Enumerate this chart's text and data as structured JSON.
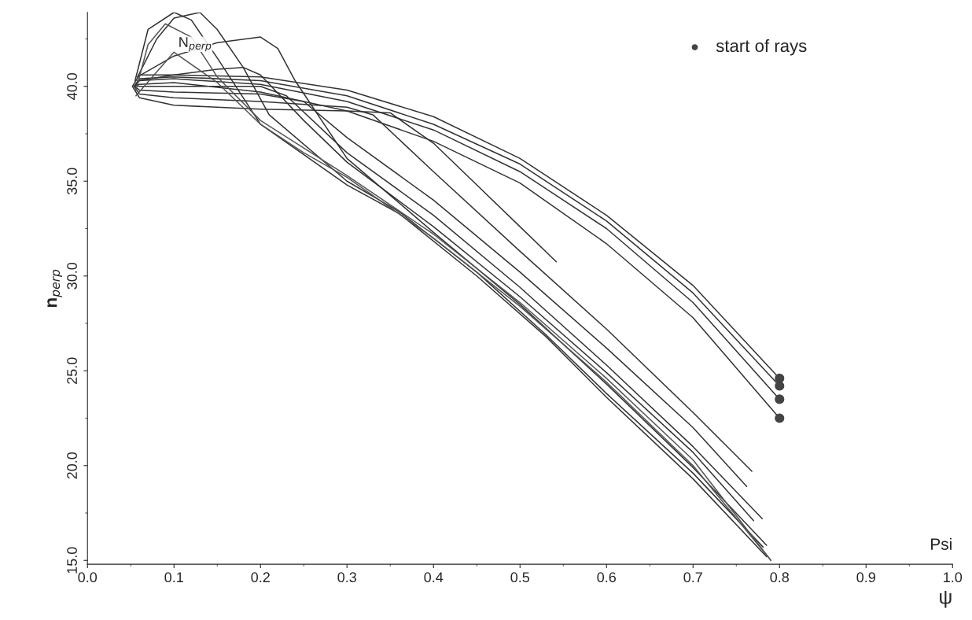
{
  "chart_data": {
    "type": "line",
    "xlabel": "ψ",
    "ylabel": "n$_{perp}$",
    "xlim": [
      0.0,
      1.0
    ],
    "ylim": [
      14.8,
      43.9
    ],
    "xticks": [
      {
        "value": 0.0,
        "label": "0.0"
      },
      {
        "value": 0.1,
        "label": "0.1"
      },
      {
        "value": 0.2,
        "label": "0.2"
      },
      {
        "value": 0.3,
        "label": "0.3"
      },
      {
        "value": 0.4,
        "label": "0.4"
      },
      {
        "value": 0.5,
        "label": "0.5"
      },
      {
        "value": 0.6,
        "label": "0.6"
      },
      {
        "value": 0.7,
        "label": "0.7"
      },
      {
        "value": 0.8,
        "label": "0.8"
      },
      {
        "value": 0.9,
        "label": "0.9"
      },
      {
        "value": 1.0,
        "label": "1.0"
      }
    ],
    "yticks": [
      {
        "value": 15,
        "label": "15.0"
      },
      {
        "value": 20,
        "label": "20.0"
      },
      {
        "value": 25,
        "label": "25.0"
      },
      {
        "value": 30,
        "label": "30.0"
      },
      {
        "value": 35,
        "label": "35.0"
      },
      {
        "value": 40,
        "label": "40.0"
      }
    ],
    "grid": false,
    "legend": "top right",
    "line_style": "solid",
    "annotations": [
      "N$_{perp}$",
      "Psi"
    ],
    "series": [
      {
        "color": "#333333",
        "x": [
          0.8,
          0.7,
          0.6,
          0.5,
          0.4,
          0.3,
          0.2,
          0.1,
          0.06,
          0.052,
          0.06,
          0.1,
          0.2,
          0.3,
          0.35,
          0.4,
          0.45,
          0.5,
          0.542
        ],
        "values": [
          24.6,
          29.5,
          33.2,
          36.2,
          38.4,
          39.8,
          40.5,
          40.6,
          40.6,
          40.0,
          39.4,
          39.0,
          38.8,
          38.7,
          38.6,
          37.0,
          34.8,
          32.6,
          30.75
        ]
      },
      {
        "color": "#333333",
        "x": [
          0.8,
          0.7,
          0.6,
          0.5,
          0.4,
          0.3,
          0.2,
          0.1,
          0.06,
          0.054,
          0.06,
          0.1,
          0.2,
          0.3,
          0.33,
          0.4,
          0.5,
          0.6,
          0.7,
          0.768
        ],
        "values": [
          24.2,
          29.1,
          32.9,
          35.9,
          38.0,
          39.5,
          40.3,
          40.5,
          40.4,
          40.0,
          39.6,
          39.4,
          39.2,
          38.9,
          38.5,
          35.5,
          31.3,
          27.2,
          22.8,
          19.7
        ]
      },
      {
        "color": "#333333",
        "x": [
          0.8,
          0.7,
          0.6,
          0.5,
          0.4,
          0.3,
          0.2,
          0.1,
          0.06,
          0.055,
          0.06,
          0.1,
          0.2,
          0.25,
          0.3,
          0.4,
          0.5,
          0.6,
          0.7,
          0.762
        ],
        "values": [
          23.5,
          28.6,
          32.5,
          35.5,
          37.7,
          39.2,
          40.1,
          40.4,
          40.3,
          40.0,
          39.8,
          39.7,
          39.6,
          39.2,
          37.3,
          34.0,
          30.2,
          26.2,
          22.0,
          18.9
        ]
      },
      {
        "color": "#333333",
        "x": [
          0.8,
          0.7,
          0.6,
          0.5,
          0.4,
          0.3,
          0.2,
          0.1,
          0.06,
          0.056,
          0.06,
          0.1,
          0.2,
          0.23,
          0.3,
          0.4,
          0.5,
          0.6,
          0.7,
          0.78
        ],
        "values": [
          22.5,
          27.8,
          31.7,
          34.9,
          37.1,
          38.7,
          39.7,
          40.2,
          40.1,
          40.05,
          40.0,
          40.0,
          40.0,
          39.5,
          36.5,
          33.2,
          29.4,
          25.3,
          21.0,
          17.2
        ]
      },
      {
        "color": "#333333",
        "x": [
          0.058,
          0.1,
          0.15,
          0.18,
          0.2,
          0.25,
          0.3,
          0.4,
          0.5,
          0.6,
          0.7,
          0.77
        ],
        "values": [
          40.3,
          40.6,
          40.9,
          41.0,
          40.6,
          38.2,
          36.0,
          32.6,
          28.9,
          24.9,
          20.7,
          17.1
        ]
      },
      {
        "color": "#333333",
        "x": [
          0.058,
          0.1,
          0.15,
          0.2,
          0.22,
          0.24,
          0.3,
          0.4,
          0.5,
          0.6,
          0.7,
          0.785
        ],
        "values": [
          40.5,
          41.6,
          42.3,
          42.6,
          42.0,
          40.3,
          36.2,
          32.3,
          28.5,
          24.3,
          19.9,
          15.8
        ]
      },
      {
        "color": "#333333",
        "x": [
          0.058,
          0.08,
          0.1,
          0.13,
          0.15,
          0.18,
          0.21,
          0.3,
          0.36,
          0.45,
          0.53,
          0.6,
          0.7,
          0.781
        ],
        "values": [
          40.5,
          42.5,
          43.6,
          43.9,
          43.0,
          41.0,
          38.5,
          35.0,
          33.4,
          30.2,
          26.9,
          23.8,
          19.6,
          15.7
        ]
      },
      {
        "color": "#333333",
        "x": [
          0.055,
          0.07,
          0.1,
          0.12,
          0.15,
          0.2,
          0.3,
          0.36,
          0.45,
          0.53,
          0.6,
          0.7,
          0.785
        ],
        "values": [
          40.3,
          43.0,
          43.9,
          43.5,
          41.5,
          38.0,
          34.8,
          33.3,
          30.0,
          26.8,
          23.6,
          19.3,
          15.2
        ]
      },
      {
        "color": "#555555",
        "x": [
          0.056,
          0.07,
          0.09,
          0.12,
          0.15,
          0.2,
          0.3,
          0.4,
          0.5,
          0.6,
          0.7,
          0.79
        ],
        "values": [
          39.8,
          42.2,
          43.3,
          42.6,
          40.5,
          38.2,
          35.3,
          32.2,
          28.6,
          24.6,
          20.3,
          15.0
        ]
      },
      {
        "color": "#555555",
        "x": [
          0.056,
          0.1,
          0.15,
          0.2,
          0.25,
          0.3,
          0.4,
          0.5,
          0.6,
          0.7,
          0.79
        ],
        "values": [
          39.5,
          41.8,
          40.2,
          38.0,
          36.5,
          35.2,
          32.0,
          28.4,
          24.4,
          20.0,
          15.0
        ]
      },
      {
        "type": "scatter",
        "name": "start of rays",
        "color": "#444444",
        "marker": "circle",
        "x": [
          0.8,
          0.8,
          0.8,
          0.8
        ],
        "values": [
          24.6,
          24.2,
          23.5,
          22.5
        ]
      }
    ]
  }
}
